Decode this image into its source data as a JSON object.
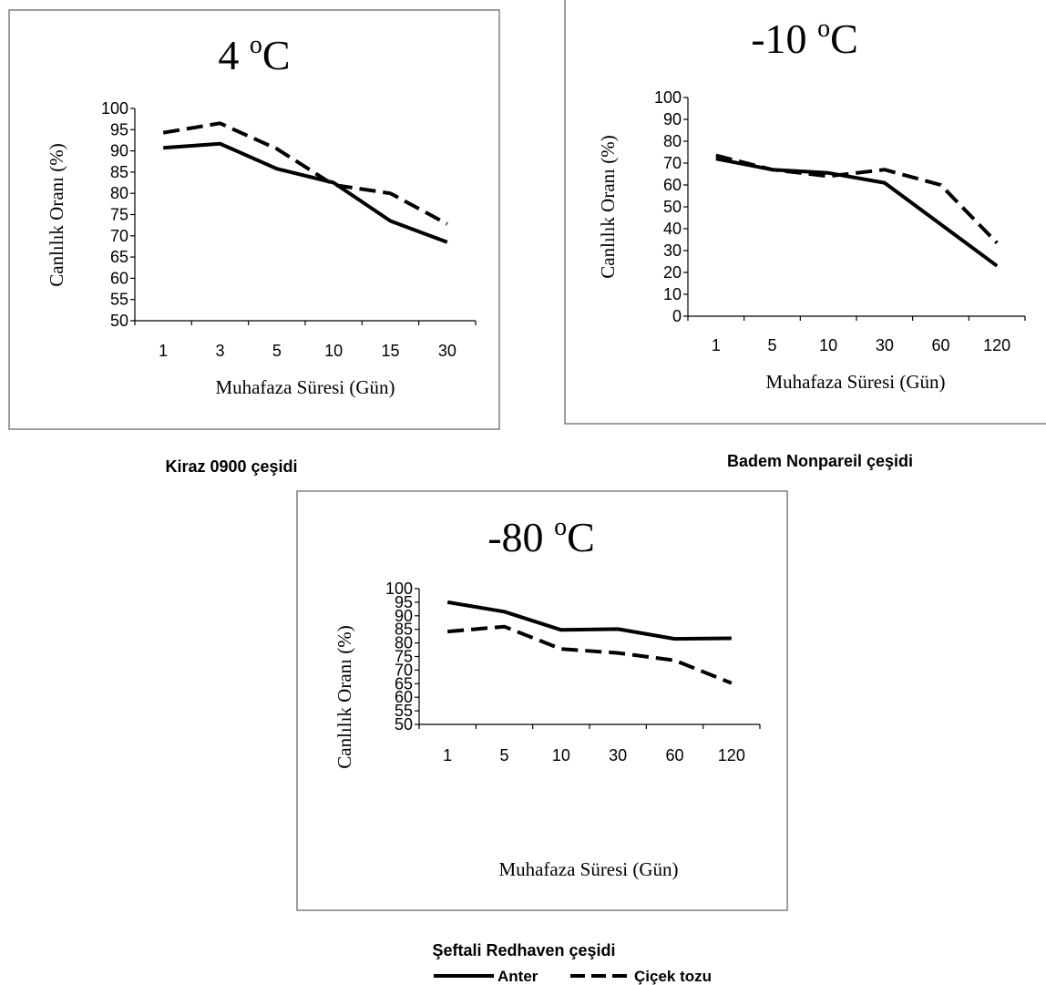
{
  "chart_data": [
    {
      "type": "line",
      "title_main": "4 ",
      "title_sup": "o",
      "title_unit": "C",
      "caption": "Kiraz 0900 çeşidi",
      "xlabel": "Muhafaza Süresi (Gün)",
      "ylabel": "Canlılık Oranı (%)",
      "categories": [
        "1",
        "3",
        "5",
        "10",
        "15",
        "30"
      ],
      "ylim": [
        50,
        100
      ],
      "ystep": 5,
      "series": [
        {
          "name": "Anter",
          "style": "solid",
          "values": [
            90.7,
            91.7,
            85.8,
            82.5,
            73.5,
            68.5
          ]
        },
        {
          "name": "Çiçek tozu",
          "style": "dashed",
          "values": [
            94.3,
            96.5,
            90.5,
            82.0,
            80.0,
            72.8
          ]
        }
      ]
    },
    {
      "type": "line",
      "title_main": "-10 ",
      "title_sup": "o",
      "title_unit": "C",
      "caption": "Badem Nonpareil çeşidi",
      "xlabel": "Muhafaza Süresi (Gün)",
      "ylabel": "Canlılık Oranı (%)",
      "categories": [
        "1",
        "5",
        "10",
        "30",
        "60",
        "120"
      ],
      "ylim": [
        0,
        100
      ],
      "ystep": 10,
      "series": [
        {
          "name": "Anter",
          "style": "solid",
          "values": [
            72,
            67,
            65.5,
            61,
            42,
            23
          ]
        },
        {
          "name": "Çiçek tozu",
          "style": "dashed",
          "values": [
            73.5,
            67,
            64,
            67,
            60,
            33.5
          ]
        }
      ]
    },
    {
      "type": "line",
      "title_main": "-80 ",
      "title_sup": "o",
      "title_unit": "C",
      "caption": "Şeftali Redhaven çeşidi",
      "xlabel": "Muhafaza Süresi (Gün)",
      "ylabel": "Canlılık Oranı (%)",
      "categories": [
        "1",
        "5",
        "10",
        "30",
        "60",
        "120"
      ],
      "ylim": [
        50,
        100
      ],
      "ystep": 5,
      "series": [
        {
          "name": "Anter",
          "style": "solid",
          "values": [
            95,
            91.5,
            84.8,
            85.1,
            81.5,
            81.7
          ]
        },
        {
          "name": "Çiçek tozu",
          "style": "dashed",
          "values": [
            84.2,
            86,
            77.8,
            76.3,
            73.6,
            65.2
          ]
        }
      ]
    }
  ],
  "legend": [
    {
      "label": "Anter",
      "style": "solid"
    },
    {
      "label": "Çiçek tozu",
      "style": "dashed"
    }
  ],
  "colors": {
    "line": "#000000",
    "frame": "#7f7f7f"
  }
}
